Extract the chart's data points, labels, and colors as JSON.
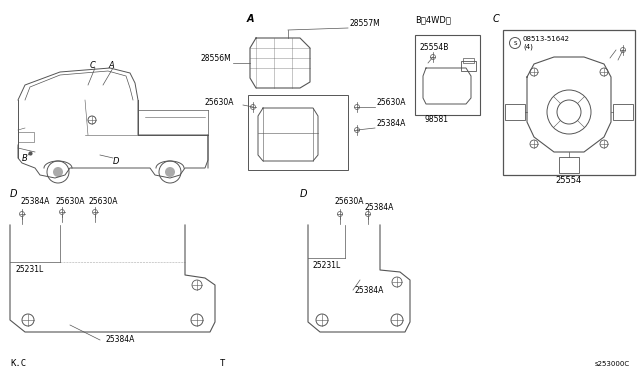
{
  "bg_color": "#ffffff",
  "line_color": "#555555",
  "text_color": "#000000",
  "fig_width": 6.4,
  "fig_height": 3.72,
  "dpi": 100,
  "footer_left": "K.C",
  "footer_mid": "T",
  "footer_right": "s253000C",
  "part_numbers": {
    "p28557M": "28557M",
    "p28556M": "28556M",
    "p25630A_a1": "25630A",
    "p25384A_a": "25384A",
    "p25630A_a2": "25630A",
    "p25554B": "25554B",
    "p98581": "98581",
    "p25554": "25554",
    "p08513": "08513-51642",
    "p08513_4": "(4)",
    "pD_25384A_top": "25384A",
    "pD_25630A_1": "25630A",
    "pD_25630A_2": "25630A",
    "pD_25231L": "25231L",
    "pD_25384A_bot": "25384A",
    "pT_25630A": "25630A",
    "pT_25384A_top": "25384A",
    "pT_25231L": "25231L",
    "pT_25384A_bot": "25384A"
  }
}
